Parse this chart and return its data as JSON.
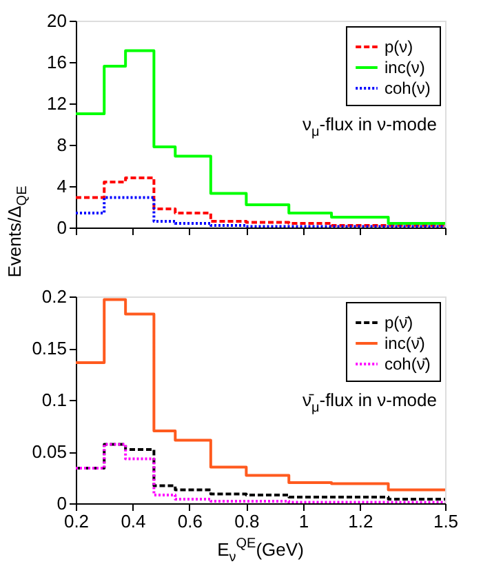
{
  "chart_data": [
    {
      "type": "histogram",
      "ylabel": "Events/Δ$_{QE}$",
      "bins": [
        0.2,
        0.3,
        0.375,
        0.475,
        0.55,
        0.675,
        0.8,
        0.95,
        1.1,
        1.3,
        1.5
      ],
      "xlim": [
        0.2,
        1.5
      ],
      "xticks": [
        0.2,
        0.4,
        0.6,
        0.8,
        1,
        1.2,
        1.5
      ],
      "ylim": [
        0,
        20
      ],
      "yticks": [
        0,
        4,
        8,
        12,
        16,
        20
      ],
      "tick_labels": "y",
      "legend": "top right",
      "grid": false,
      "annotations": [
        "ν$_{μ}$-flux in ν-mode"
      ],
      "series": [
        {
          "name": "p(ν)",
          "color": "#ff0000",
          "line_style": "dashed",
          "values": [
            2.9,
            4.4,
            4.8,
            1.8,
            1.4,
            0.6,
            0.5,
            0.4,
            0.2,
            0.2
          ]
        },
        {
          "name": "inc(ν)",
          "color": "#00ff00",
          "line_style": "solid",
          "values": [
            11.0,
            15.6,
            17.1,
            7.8,
            6.9,
            3.3,
            2.2,
            1.4,
            1.0,
            0.4
          ]
        },
        {
          "name": "coh(ν)",
          "color": "#0000ff",
          "line_style": "dotted",
          "values": [
            1.4,
            2.9,
            2.9,
            0.6,
            0.4,
            0.2,
            0.1,
            0.1,
            0.1,
            0.1
          ]
        }
      ]
    },
    {
      "type": "histogram",
      "xlabel": "E$_{ν}$$^{QE}$(GeV)",
      "bins": [
        0.2,
        0.3,
        0.375,
        0.475,
        0.55,
        0.675,
        0.8,
        0.95,
        1.1,
        1.3,
        1.5
      ],
      "xlim": [
        0.2,
        1.5
      ],
      "xticks": [
        0.2,
        0.4,
        0.6,
        0.8,
        1,
        1.2,
        1.5
      ],
      "ylim": [
        0,
        0.2
      ],
      "yticks": [
        0,
        0.05,
        0.1,
        0.15,
        0.2
      ],
      "legend": "top right",
      "grid": false,
      "annotations": [
        "ν̄$_{μ}$-flux in ν-mode"
      ],
      "series": [
        {
          "name": "p(ν̄)",
          "color": "#000000",
          "line_style": "dashed",
          "values": [
            0.034,
            0.057,
            0.052,
            0.017,
            0.013,
            0.009,
            0.008,
            0.006,
            0.006,
            0.004
          ]
        },
        {
          "name": "inc(ν̄)",
          "color": "#ff5a1e",
          "line_style": "solid",
          "values": [
            0.136,
            0.197,
            0.183,
            0.07,
            0.061,
            0.035,
            0.027,
            0.02,
            0.019,
            0.013
          ]
        },
        {
          "name": "coh(ν̄)",
          "color": "#ff00ff",
          "line_style": "dotted",
          "values": [
            0.034,
            0.057,
            0.043,
            0.008,
            0.004,
            0.002,
            0.002,
            0.001,
            0.001,
            0.001
          ]
        }
      ]
    }
  ]
}
